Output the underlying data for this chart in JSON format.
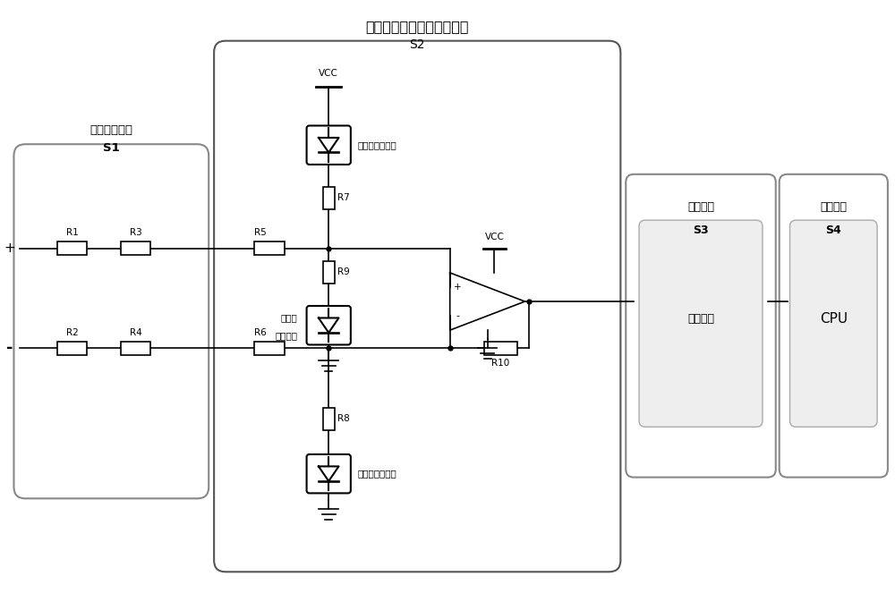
{
  "title": "带阻断功能的差分采样电路",
  "title_sub": "S2",
  "bg_color": "#ffffff",
  "line_color": "#000000",
  "fig_width": 10.0,
  "fig_height": 6.82,
  "s1_label": "高阻隔离电路",
  "s1_sub": "S1",
  "s3_label": "滤波电路",
  "s3_sub": "S3",
  "s4_label": "控制单元",
  "s4_sub": "S4",
  "s3_inner": "滤波电路",
  "s4_inner": "CPU",
  "label_erjiguan": "二极管阻断单元",
  "label_erjiguan_left1": "二极管",
  "label_erjiguan_left2": "阻断单元"
}
